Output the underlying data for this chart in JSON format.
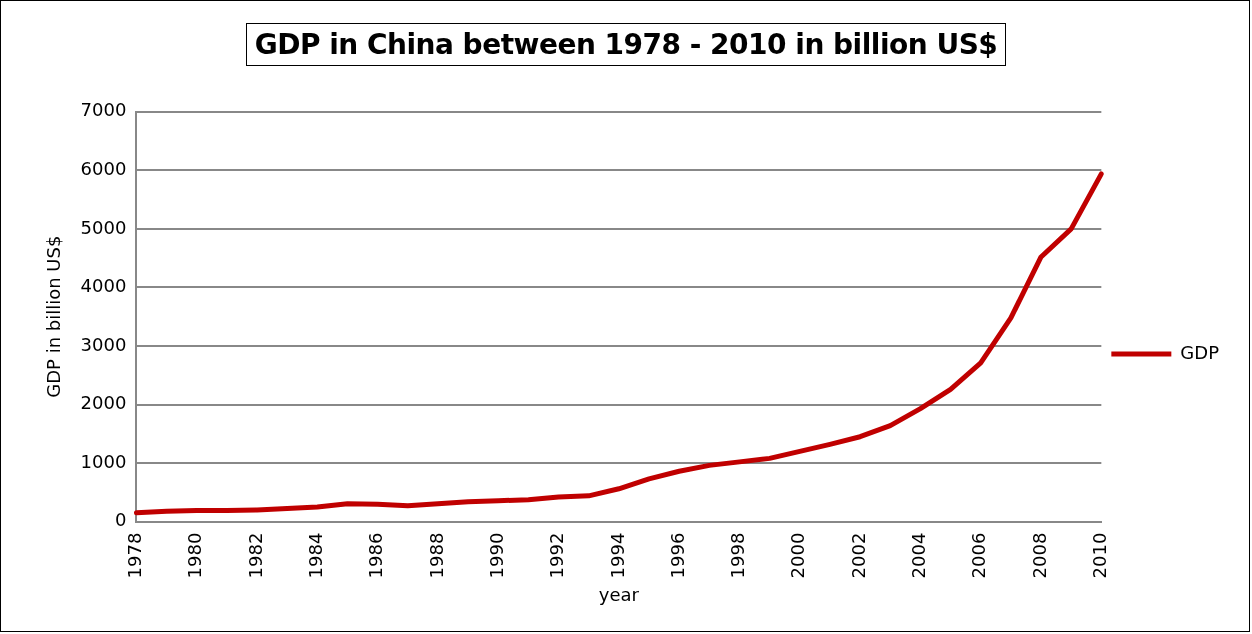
{
  "chart_data": {
    "type": "line",
    "title": "GDP in China between 1978 - 2010 in billion US$",
    "xlabel": "year",
    "ylabel": "GDP in billion US$",
    "categories": [
      "1978",
      null,
      "1980",
      null,
      "1982",
      null,
      "1984",
      null,
      "1986",
      null,
      "1988",
      null,
      "1990",
      null,
      "1992",
      null,
      "1994",
      null,
      "1996",
      null,
      "1998",
      null,
      "2000",
      null,
      "2002",
      null,
      "2004",
      null,
      "2006",
      null,
      "2008",
      null,
      "2010"
    ],
    "series": [
      {
        "name": "GDP",
        "color": "#c00000",
        "values": [
          150,
          175,
          190,
          190,
          200,
          225,
          250,
          305,
          295,
          270,
          305,
          340,
          355,
          375,
          420,
          440,
          560,
          730,
          860,
          960,
          1020,
          1080,
          1200,
          1320,
          1450,
          1640,
          1930,
          2260,
          2710,
          3480,
          4520,
          5000,
          5940
        ]
      }
    ],
    "ylim": [
      0,
      7000
    ],
    "yticks": [
      0,
      1000,
      2000,
      3000,
      4000,
      5000,
      6000,
      7000
    ],
    "grid": "y",
    "legend": "right",
    "marker": "none",
    "line_style": "solid"
  }
}
